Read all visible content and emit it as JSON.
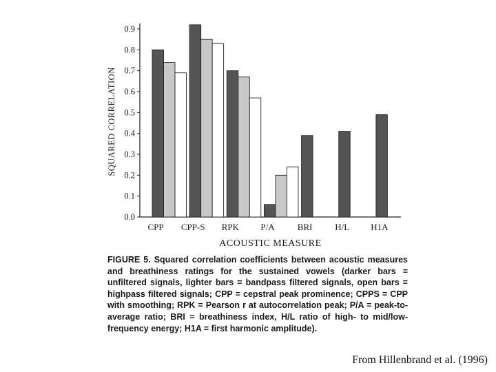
{
  "chart_data": {
    "type": "bar",
    "title": "",
    "xlabel": "ACOUSTIC MEASURE",
    "ylabel": "SQUARED CORRELATION",
    "ylim": [
      0,
      0.9
    ],
    "yticks": [
      "0.0",
      "0.1",
      "0.2",
      "0.3",
      "0.4",
      "0.5",
      "0.6",
      "0.7",
      "0.8",
      "0.9"
    ],
    "categories": [
      "CPP",
      "CPP-S",
      "RPK",
      "P/A",
      "BRI",
      "H/L",
      "H1A"
    ],
    "series": [
      {
        "values": [
          0.8,
          0.92,
          0.7,
          0.06,
          0.39,
          0.41,
          0.49
        ],
        "color": "#555555"
      },
      {
        "values": [
          0.74,
          0.85,
          0.67,
          0.2,
          null,
          null,
          null
        ],
        "color": "#c8c8c8"
      },
      {
        "values": [
          0.69,
          0.83,
          0.57,
          0.24,
          null,
          null,
          null
        ],
        "color": "#ffffff"
      }
    ],
    "grid": false
  },
  "caption": {
    "label": "FIGURE 5.",
    "text": "Squared correlation coefficients between acoustic measures and breathiness ratings for the sustained vowels (darker bars = unfiltered signals, lighter bars = bandpass filtered signals, open bars = highpass filtered signals; CPP = cepstral peak prominence; CPPS = CPP with smoothing; RPK = Pearson r at autocorrelation peak; P/A = peak-to-average ratio; BRI = breathiness index, H/L ratio of high- to mid/low-frequency energy; H1A = first harmonic amplitude)."
  },
  "credit": "From Hillenbrand et al. (1996)"
}
